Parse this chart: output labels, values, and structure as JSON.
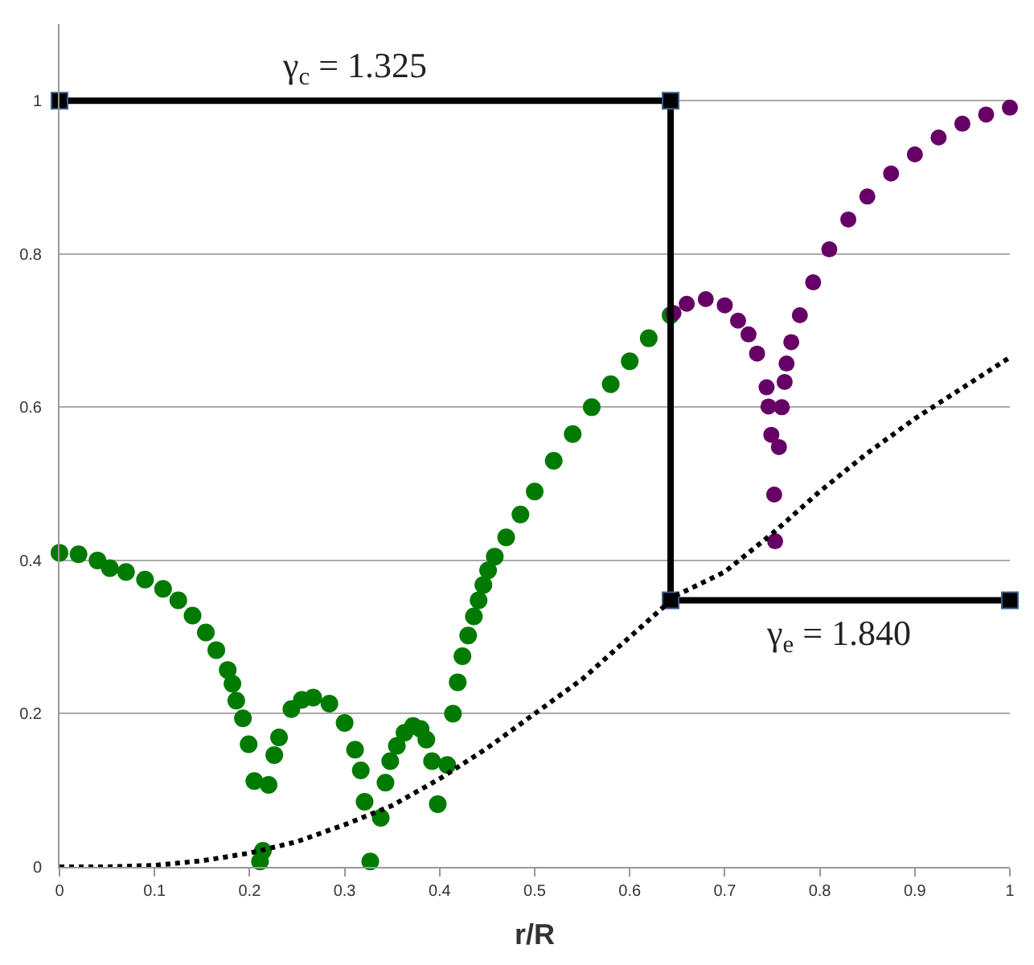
{
  "chart_data": {
    "type": "scatter",
    "xlabel": "r/R",
    "xlim": [
      0,
      1
    ],
    "ylim": [
      0,
      1.1
    ],
    "xticks": [
      0,
      0.1,
      0.2,
      0.3,
      0.4,
      0.5,
      0.6,
      0.7,
      0.8,
      0.9,
      1
    ],
    "yticks": [
      0,
      0.2,
      0.4,
      0.6,
      0.8,
      1
    ],
    "grid": "y",
    "marker": "circle",
    "annotations": [
      "γ$_{c}$ = 1.325",
      "γ$_{e}$ = 1.840"
    ],
    "series": [
      {
        "color": "#007a00",
        "x": [
          0,
          0.02,
          0.04,
          0.053,
          0.07,
          0.09,
          0.109,
          0.125,
          0.14,
          0.154,
          0.165,
          0.177,
          0.182,
          0.186,
          0.193,
          0.199,
          0.205,
          0.211,
          0.214,
          0.22,
          0.226,
          0.231,
          0.244,
          0.255,
          0.267,
          0.284,
          0.3,
          0.311,
          0.317,
          0.321,
          0.327,
          0.338,
          0.343,
          0.348,
          0.355,
          0.363,
          0.372,
          0.38,
          0.386,
          0.392,
          0.398,
          0.408,
          0.414,
          0.419,
          0.424,
          0.43,
          0.436,
          0.441,
          0.446,
          0.451,
          0.458,
          0.47,
          0.485,
          0.5,
          0.52,
          0.54,
          0.56,
          0.58,
          0.6,
          0.62,
          0.643
        ],
        "values": [
          0.41,
          0.408,
          0.4,
          0.39,
          0.385,
          0.375,
          0.363,
          0.348,
          0.328,
          0.306,
          0.283,
          0.257,
          0.239,
          0.217,
          0.194,
          0.16,
          0.112,
          0.007,
          0.021,
          0.107,
          0.146,
          0.169,
          0.206,
          0.218,
          0.221,
          0.213,
          0.188,
          0.153,
          0.126,
          0.085,
          0.007,
          0.064,
          0.11,
          0.138,
          0.158,
          0.175,
          0.184,
          0.18,
          0.166,
          0.138,
          0.082,
          0.133,
          0.2,
          0.241,
          0.275,
          0.302,
          0.327,
          0.348,
          0.368,
          0.387,
          0.405,
          0.43,
          0.46,
          0.49,
          0.53,
          0.565,
          0.6,
          0.63,
          0.66,
          0.69,
          0.72
        ]
      },
      {
        "color": "#660066",
        "x": [
          0.646,
          0.66,
          0.68,
          0.7,
          0.714,
          0.725,
          0.734,
          0.744,
          0.746,
          0.749,
          0.752,
          0.753,
          0.757,
          0.76,
          0.763,
          0.765,
          0.77,
          0.779,
          0.793,
          0.81,
          0.83,
          0.85,
          0.875,
          0.9,
          0.925,
          0.95,
          0.975,
          1
        ],
        "values": [
          0.723,
          0.735,
          0.741,
          0.733,
          0.713,
          0.695,
          0.67,
          0.626,
          0.601,
          0.564,
          0.486,
          0.425,
          0.548,
          0.6,
          0.633,
          0.657,
          0.685,
          0.72,
          0.763,
          0.806,
          0.845,
          0.875,
          0.905,
          0.93,
          0.952,
          0.97,
          0.982,
          0.991
        ]
      },
      {
        "type": "line",
        "color": "#000000",
        "marker": "square",
        "line_style": "solid",
        "x": [
          0,
          0.643,
          0.643,
          1
        ],
        "values": [
          1,
          1,
          0.348,
          0.348
        ]
      },
      {
        "type": "line",
        "color": "#000000",
        "marker": "none",
        "line_style": "dotted",
        "x": [
          0,
          0.05,
          0.1,
          0.15,
          0.2,
          0.25,
          0.3,
          0.35,
          0.4,
          0.45,
          0.5,
          0.55,
          0.6,
          0.65,
          0.7,
          0.75,
          0.8,
          0.85,
          0.9,
          0.95,
          1
        ],
        "values": [
          0,
          0,
          0.002,
          0.008,
          0.018,
          0.033,
          0.055,
          0.08,
          0.115,
          0.155,
          0.2,
          0.245,
          0.3,
          0.355,
          0.385,
          0.435,
          0.49,
          0.54,
          0.585,
          0.625,
          0.665
        ]
      }
    ]
  }
}
